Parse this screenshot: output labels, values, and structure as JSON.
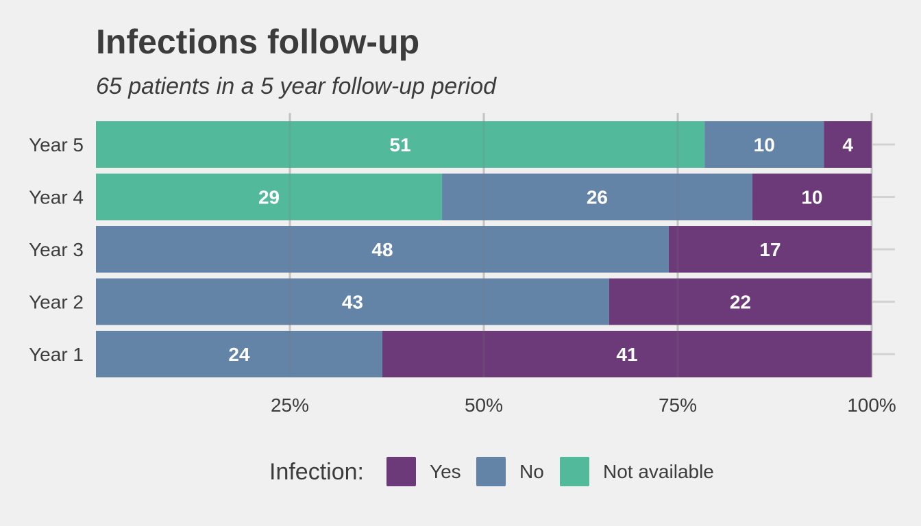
{
  "chart_data": {
    "type": "bar",
    "orientation": "horizontal",
    "stacked": "percent",
    "title": "Infections follow-up",
    "subtitle": "65 patients in a 5 year follow-up period",
    "categories": [
      "Year 5",
      "Year 4",
      "Year 3",
      "Year 2",
      "Year 1"
    ],
    "series": [
      {
        "name": "Not available",
        "color": "#53b99b",
        "values": [
          51,
          29,
          0,
          0,
          0
        ]
      },
      {
        "name": "No",
        "color": "#6383a7",
        "values": [
          10,
          26,
          48,
          43,
          24
        ]
      },
      {
        "name": "Yes",
        "color": "#6c3a78",
        "values": [
          4,
          10,
          17,
          22,
          41
        ]
      }
    ],
    "x_ticks": [
      "25%",
      "50%",
      "75%",
      "100%"
    ],
    "x_tick_values": [
      0.25,
      0.5,
      0.75,
      1.0
    ],
    "xlim": [
      0,
      1
    ],
    "grid": true,
    "legend": {
      "title": "Infection:",
      "position": "bottom",
      "items": [
        {
          "label": "Yes",
          "color": "#6c3a78"
        },
        {
          "label": "No",
          "color": "#6383a7"
        },
        {
          "label": "Not available",
          "color": "#53b99b"
        }
      ]
    }
  }
}
